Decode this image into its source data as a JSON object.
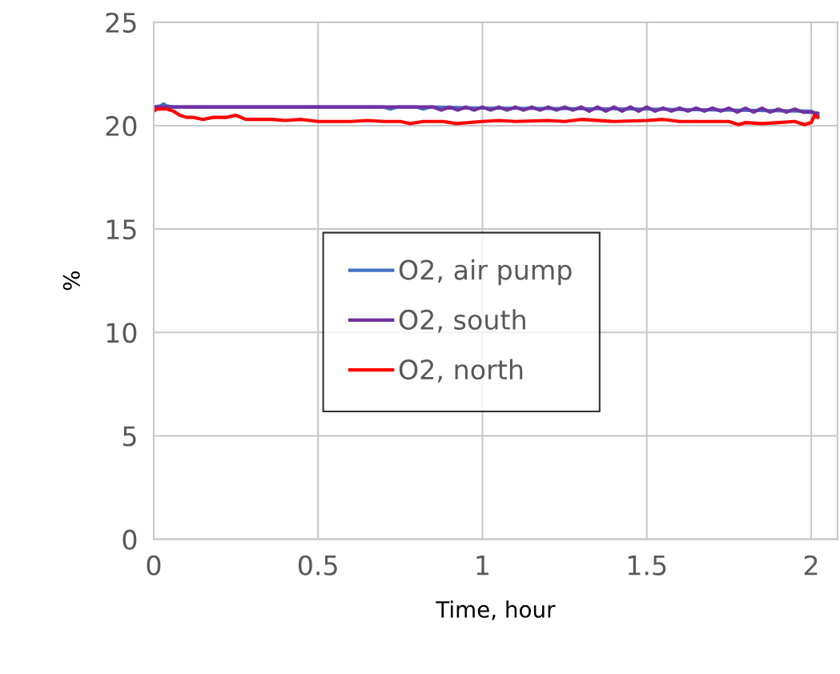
{
  "chart_data": {
    "type": "line",
    "xlabel": "Time, hour",
    "ylabel": "%",
    "xlim": [
      0,
      2.08
    ],
    "xticks": [
      0,
      0.5,
      1,
      1.5,
      2
    ],
    "ylim": [
      0,
      25
    ],
    "yticks": [
      0,
      5,
      10,
      15,
      20,
      25
    ],
    "grid": true,
    "legend": "center",
    "marker": "none",
    "line_style": "solid",
    "series": [
      {
        "name": "O2, air pump",
        "color": "#4472c4",
        "x": [
          0,
          0.02,
          0.03,
          0.04,
          0.06,
          0.7,
          0.72,
          0.74,
          0.8,
          0.82,
          0.84,
          1.0,
          1.5,
          2.0,
          2.02
        ],
        "values": [
          20.9,
          20.95,
          21.05,
          20.95,
          20.9,
          20.9,
          20.8,
          20.9,
          20.9,
          20.8,
          20.9,
          20.85,
          20.8,
          20.7,
          20.5
        ]
      },
      {
        "name": "O2, south",
        "color": "#7030a0",
        "x": [
          0,
          0.85,
          0.875,
          0.9,
          0.925,
          0.95,
          0.975,
          1.0,
          1.025,
          1.05,
          1.075,
          1.1,
          1.125,
          1.15,
          1.175,
          1.2,
          1.225,
          1.25,
          1.275,
          1.3,
          1.325,
          1.35,
          1.375,
          1.4,
          1.425,
          1.45,
          1.475,
          1.5,
          1.525,
          1.55,
          1.575,
          1.6,
          1.625,
          1.65,
          1.675,
          1.7,
          1.725,
          1.75,
          1.775,
          1.8,
          1.825,
          1.85,
          1.875,
          1.9,
          1.925,
          1.95,
          1.975,
          2.0,
          2.02
        ],
        "values": [
          20.9,
          20.9,
          20.75,
          20.9,
          20.75,
          20.9,
          20.75,
          20.9,
          20.75,
          20.9,
          20.75,
          20.9,
          20.75,
          20.9,
          20.75,
          20.9,
          20.75,
          20.9,
          20.75,
          20.9,
          20.7,
          20.9,
          20.7,
          20.9,
          20.7,
          20.9,
          20.7,
          20.9,
          20.7,
          20.85,
          20.7,
          20.85,
          20.7,
          20.85,
          20.7,
          20.85,
          20.7,
          20.85,
          20.65,
          20.85,
          20.65,
          20.85,
          20.65,
          20.8,
          20.65,
          20.8,
          20.65,
          20.65,
          20.6
        ]
      },
      {
        "name": "O2, north",
        "color": "#ff0000",
        "x": [
          0,
          0.01,
          0.04,
          0.06,
          0.08,
          0.1,
          0.12,
          0.15,
          0.18,
          0.22,
          0.25,
          0.28,
          0.32,
          0.36,
          0.4,
          0.45,
          0.5,
          0.55,
          0.6,
          0.65,
          0.7,
          0.75,
          0.78,
          0.82,
          0.88,
          0.92,
          1.0,
          1.05,
          1.1,
          1.2,
          1.25,
          1.3,
          1.4,
          1.5,
          1.55,
          1.6,
          1.7,
          1.75,
          1.78,
          1.8,
          1.85,
          1.9,
          1.95,
          1.98,
          2.0,
          2.01,
          2.02
        ],
        "values": [
          20.7,
          20.8,
          20.8,
          20.7,
          20.5,
          20.4,
          20.4,
          20.3,
          20.4,
          20.4,
          20.5,
          20.3,
          20.3,
          20.3,
          20.25,
          20.3,
          20.2,
          20.2,
          20.2,
          20.25,
          20.2,
          20.2,
          20.1,
          20.2,
          20.2,
          20.1,
          20.2,
          20.25,
          20.2,
          20.25,
          20.2,
          20.3,
          20.2,
          20.25,
          20.3,
          20.2,
          20.2,
          20.2,
          20.05,
          20.15,
          20.1,
          20.15,
          20.2,
          20.05,
          20.15,
          20.5,
          20.4
        ]
      }
    ]
  }
}
